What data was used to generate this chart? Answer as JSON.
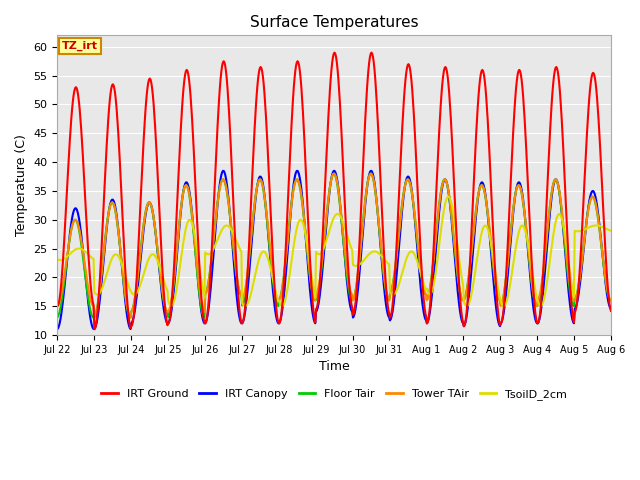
{
  "title": "Surface Temperatures",
  "xlabel": "Time",
  "ylabel": "Temperature (C)",
  "ylim": [
    10,
    62
  ],
  "yticks": [
    10,
    15,
    20,
    25,
    30,
    35,
    40,
    45,
    50,
    55,
    60
  ],
  "background_color": "#e8e8e8",
  "annotation_text": "TZ_irt",
  "annotation_bg": "#ffff99",
  "annotation_border": "#cc8800",
  "annotation_text_color": "#cc0000",
  "series": [
    {
      "label": "IRT Ground",
      "color": "#ff0000"
    },
    {
      "label": "IRT Canopy",
      "color": "#0000ff"
    },
    {
      "label": "Floor Tair",
      "color": "#00cc00"
    },
    {
      "label": "Tower TAir",
      "color": "#ff8800"
    },
    {
      "label": "TsoilD_2cm",
      "color": "#dddd00"
    }
  ],
  "x_tick_labels": [
    "Jul 22",
    "Jul 23",
    "Jul 24",
    "Jul 25",
    "Jul 26",
    "Jul 27",
    "Jul 28",
    "Jul 29",
    "Jul 30",
    "Jul 31",
    "Aug 1",
    "Aug 2",
    "Aug 3",
    "Aug 4",
    "Aug 5",
    "Aug 6"
  ],
  "n_days": 15,
  "points_per_day": 48,
  "day_peaks_irt_ground": [
    53,
    53.5,
    54.5,
    56,
    57.5,
    56.5,
    57.5,
    59,
    59,
    57,
    56.5,
    56,
    56,
    56.5,
    55.5
  ],
  "day_mins_irt_ground": [
    15,
    11,
    11.5,
    12,
    12,
    12,
    12,
    14.5,
    13.5,
    13,
    12,
    11.5,
    12,
    12,
    14
  ],
  "day_peaks_canopy": [
    32,
    33.5,
    33,
    36.5,
    38.5,
    37.5,
    38.5,
    38.5,
    38.5,
    37.5,
    37,
    36.5,
    36.5,
    37,
    35
  ],
  "day_mins_canopy": [
    11,
    11,
    12,
    12,
    12,
    12,
    12,
    14,
    13,
    12.5,
    12,
    11.5,
    12,
    12,
    14.5
  ],
  "day_peaks_floor": [
    30,
    33,
    33,
    36,
    37,
    37,
    37,
    38,
    38,
    37,
    37,
    36,
    36,
    37,
    34
  ],
  "day_mins_floor": [
    13,
    13,
    14,
    13,
    17,
    15,
    16,
    16,
    16,
    17,
    16,
    16,
    15,
    15,
    16
  ],
  "day_peaks_tower": [
    30,
    33,
    33,
    36,
    37,
    37,
    37,
    38,
    38,
    37,
    37,
    36,
    36,
    37,
    34
  ],
  "day_mins_tower": [
    15,
    13,
    14,
    14,
    17,
    16,
    16,
    17,
    16,
    17,
    16,
    16,
    15,
    16,
    16
  ],
  "day_peaks_soil": [
    25,
    24,
    24,
    30,
    29,
    24.5,
    30,
    31,
    24.5,
    24.5,
    34,
    29,
    29,
    31,
    29
  ],
  "day_mins_soil": [
    23,
    17,
    17,
    15,
    24,
    15,
    15,
    24,
    22,
    17,
    17,
    15,
    15,
    15,
    28
  ]
}
